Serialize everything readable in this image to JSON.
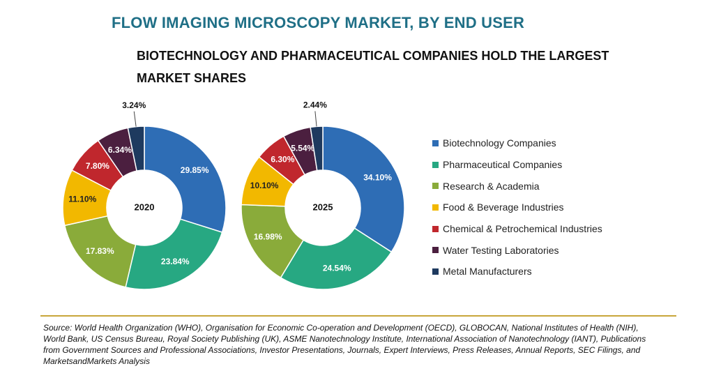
{
  "title": "FLOW IMAGING MICROSCOPY MARKET, BY END USER",
  "subtitle": "BIOTECHNOLOGY AND PHARMACEUTICAL COMPANIES HOLD THE LARGEST MARKET SHARES",
  "chart_data": [
    {
      "type": "pie",
      "variant": "donut",
      "center_label": "2020",
      "categories": [
        "Biotechnology Companies",
        "Pharmaceutical Companies",
        "Research & Academia",
        "Food & Beverage Industries",
        "Chemical & Petrochemical Industries",
        "Water Testing Laboratories",
        "Metal Manufacturers"
      ],
      "values": [
        29.85,
        23.84,
        17.83,
        11.1,
        7.8,
        6.34,
        3.24
      ],
      "labels": [
        "29.85%",
        "23.84%",
        "17.83%",
        "11.10%",
        "7.80%",
        "6.34%",
        "3.24%"
      ],
      "colors": [
        "#2e6db5",
        "#27a882",
        "#8aab3a",
        "#f2b800",
        "#c0272d",
        "#4b1f3f",
        "#1e3a5f"
      ]
    },
    {
      "type": "pie",
      "variant": "donut",
      "center_label": "2025",
      "categories": [
        "Biotechnology Companies",
        "Pharmaceutical Companies",
        "Research & Academia",
        "Food & Beverage Industries",
        "Chemical & Petrochemical Industries",
        "Water Testing Laboratories",
        "Metal Manufacturers"
      ],
      "values": [
        34.1,
        24.54,
        16.98,
        10.1,
        6.3,
        5.54,
        2.44
      ],
      "labels": [
        "34.10%",
        "24.54%",
        "16.98%",
        "10.10%",
        "6.30%",
        "5.54%",
        "2.44%"
      ],
      "colors": [
        "#2e6db5",
        "#27a882",
        "#8aab3a",
        "#f2b800",
        "#c0272d",
        "#4b1f3f",
        "#1e3a5f"
      ]
    }
  ],
  "legend": {
    "placement": "right",
    "items": [
      {
        "label": "Biotechnology Companies",
        "color": "#2e6db5"
      },
      {
        "label": "Pharmaceutical Companies",
        "color": "#27a882"
      },
      {
        "label": "Research & Academia",
        "color": "#8aab3a"
      },
      {
        "label": "Food & Beverage Industries",
        "color": "#f2b800"
      },
      {
        "label": "Chemical & Petrochemical Industries",
        "color": "#c0272d"
      },
      {
        "label": "Water Testing Laboratories",
        "color": "#4b1f3f"
      },
      {
        "label": "Metal Manufacturers",
        "color": "#1e3a5f"
      }
    ]
  },
  "source": "Source: World Health Organization (WHO), Organisation for Economic Co-operation and Development (OECD), GLOBOCAN, National Institutes of Health (NIH), World Bank, US Census Bureau, Royal Society Publishing (UK), ASME Nanotechnology Institute, International Association of Nanotechnology (IANT), Publications from Government Sources and Professional Associations, Investor Presentations, Journals, Expert Interviews, Press Releases, Annual Reports, SEC Filings, and MarketsandMarkets Analysis"
}
